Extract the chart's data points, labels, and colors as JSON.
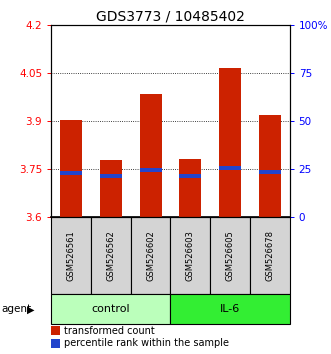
{
  "title": "GDS3773 / 10485402",
  "samples": [
    "GSM526561",
    "GSM526562",
    "GSM526602",
    "GSM526603",
    "GSM526605",
    "GSM526678"
  ],
  "bar_bottoms": [
    3.6,
    3.6,
    3.6,
    3.6,
    3.6,
    3.6
  ],
  "bar_tops": [
    3.902,
    3.778,
    3.985,
    3.783,
    4.065,
    3.918
  ],
  "percentile_values": [
    3.737,
    3.728,
    3.748,
    3.728,
    3.753,
    3.742
  ],
  "bar_color": "#cc2200",
  "percentile_color": "#2244cc",
  "ylim_left": [
    3.6,
    4.2
  ],
  "ylim_right": [
    0,
    100
  ],
  "yticks_left": [
    3.6,
    3.75,
    3.9,
    4.05,
    4.2
  ],
  "ytick_labels_left": [
    "3.6",
    "3.75",
    "3.9",
    "4.05",
    "4.2"
  ],
  "yticks_right": [
    0,
    25,
    50,
    75,
    100
  ],
  "ytick_labels_right": [
    "0",
    "25",
    "50",
    "75",
    "100%"
  ],
  "hgrid_values": [
    3.75,
    3.9,
    4.05
  ],
  "group_labels": [
    "control",
    "IL-6"
  ],
  "group_ranges": [
    [
      0,
      3
    ],
    [
      3,
      6
    ]
  ],
  "group_colors": [
    "#bbffbb",
    "#33ee33"
  ],
  "agent_label": "agent",
  "legend_items": [
    {
      "label": "transformed count",
      "color": "#cc2200"
    },
    {
      "label": "percentile rank within the sample",
      "color": "#2244cc"
    }
  ],
  "bar_width": 0.55,
  "title_fontsize": 10,
  "tick_fontsize": 7.5,
  "sample_fontsize": 6,
  "group_fontsize": 8,
  "legend_fontsize": 7
}
